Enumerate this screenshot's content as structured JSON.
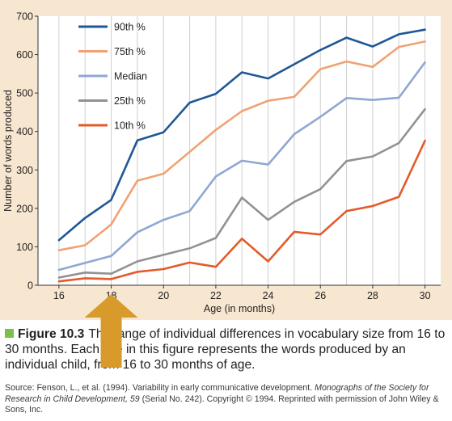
{
  "chart_data": {
    "type": "line",
    "xlabel": "Age (in months)",
    "ylabel": "Number of words produced",
    "xlim": [
      15.2,
      30.6
    ],
    "ylim": [
      0,
      700
    ],
    "x_ticks": [
      16,
      18,
      20,
      22,
      24,
      26,
      28,
      30
    ],
    "y_ticks": [
      0,
      100,
      200,
      300,
      400,
      500,
      600,
      700
    ],
    "x": [
      16,
      17,
      18,
      19,
      20,
      21,
      22,
      23,
      24,
      25,
      26,
      27,
      28,
      29,
      30
    ],
    "legend_position": "top-left",
    "grid": "vertical",
    "series": [
      {
        "name": "90th %",
        "color": "#1f5796",
        "values": [
          117,
          175,
          222,
          377,
          398,
          475,
          498,
          554,
          538,
          575,
          612,
          644,
          621,
          653,
          665
        ]
      },
      {
        "name": "75th %",
        "color": "#f0a274",
        "values": [
          91,
          104,
          158,
          272,
          290,
          347,
          404,
          453,
          480,
          490,
          562,
          582,
          568,
          620,
          634
        ]
      },
      {
        "name": "Median",
        "color": "#8fa7d3",
        "values": [
          40,
          58,
          76,
          138,
          170,
          193,
          283,
          324,
          314,
          393,
          438,
          487,
          482,
          488,
          580
        ]
      },
      {
        "name": "25th %",
        "color": "#929292",
        "values": [
          20,
          33,
          30,
          62,
          79,
          96,
          123,
          228,
          170,
          217,
          250,
          323,
          335,
          370,
          458
        ]
      },
      {
        "name": "10th %",
        "color": "#e35b29",
        "values": [
          10,
          18,
          16,
          35,
          42,
          59,
          48,
          121,
          62,
          139,
          132,
          193,
          206,
          230,
          376
        ]
      }
    ]
  },
  "caption": {
    "label": "Figure 10.3",
    "text": "The range of individual differences in vocabulary size from 16 to 30 months. Each line in this figure represents the words produced by an individual child, from 16 to 30 months of age."
  },
  "source": {
    "prefix": "Source: Fenson, L., et al. (1994). Variability in early communicative development. ",
    "journal": "Monographs of the Society for Research in Child Development, 59",
    "suffix": " (Serial No. 242). Copyright © 1994. Reprinted with permission of John Wiley & Sons, Inc."
  },
  "overlay": {
    "arrow_color": "#d89b2b",
    "points_to_x": 18
  }
}
